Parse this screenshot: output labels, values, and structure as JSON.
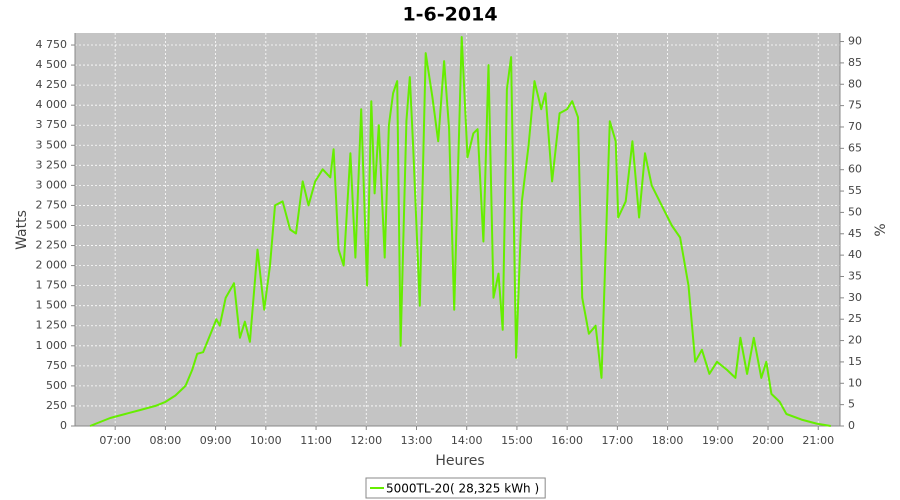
{
  "chart_data": {
    "type": "line",
    "title": "1-6-2014",
    "xlabel": "Heures",
    "ylabel": "Watts",
    "y2label": "%",
    "x": [
      "06:30",
      "06:42",
      "06:54",
      "07:12",
      "07:30",
      "07:48",
      "08:00",
      "08:12",
      "08:24",
      "08:32",
      "08:38",
      "08:45",
      "08:54",
      "09:01",
      "09:05",
      "09:12",
      "09:22",
      "09:29",
      "09:35",
      "09:41",
      "09:50",
      "09:58",
      "10:05",
      "10:11",
      "10:20",
      "10:29",
      "10:36",
      "10:44",
      "10:51",
      "10:59",
      "11:08",
      "11:17",
      "11:21",
      "11:27",
      "11:33",
      "11:41",
      "11:47",
      "11:54",
      "12:01",
      "12:06",
      "12:10",
      "12:15",
      "12:22",
      "12:27",
      "12:32",
      "12:37",
      "12:41",
      "12:48",
      "12:52",
      "12:56",
      "13:04",
      "13:11",
      "13:19",
      "13:26",
      "13:33",
      "13:39",
      "13:45",
      "13:54",
      "14:01",
      "14:08",
      "14:13",
      "14:20",
      "14:26",
      "14:32",
      "14:38",
      "14:43",
      "14:48",
      "14:53",
      "14:59",
      "15:06",
      "15:14",
      "15:21",
      "15:29",
      "15:34",
      "15:42",
      "15:51",
      "16:00",
      "16:06",
      "16:13",
      "16:18",
      "16:26",
      "16:34",
      "16:41",
      "16:51",
      "16:58",
      "17:01",
      "17:10",
      "17:18",
      "17:26",
      "17:33",
      "17:41",
      "17:53",
      "18:05",
      "18:15",
      "18:25",
      "18:33",
      "18:41",
      "18:50",
      "18:59",
      "19:11",
      "19:21",
      "19:27",
      "19:35",
      "19:43",
      "19:52",
      "19:58",
      "20:04",
      "20:14",
      "20:22",
      "20:40",
      "20:58",
      "21:15"
    ],
    "series": [
      {
        "name": "5000TL-20( 28,325 kWh )",
        "color": "#66ee00",
        "values": [
          0,
          50,
          100,
          150,
          200,
          250,
          300,
          380,
          500,
          700,
          900,
          920,
          1150,
          1330,
          1250,
          1600,
          1780,
          1100,
          1300,
          1050,
          2200,
          1450,
          2000,
          2750,
          2800,
          2450,
          2400,
          3050,
          2750,
          3050,
          3200,
          3100,
          3450,
          2200,
          2000,
          3400,
          2100,
          3950,
          1750,
          4050,
          2900,
          3750,
          2100,
          3750,
          4150,
          4300,
          1000,
          3800,
          4350,
          3500,
          1500,
          4650,
          4100,
          3550,
          4550,
          3700,
          1450,
          4850,
          3350,
          3650,
          3700,
          2300,
          4500,
          1600,
          1900,
          1200,
          4200,
          4600,
          850,
          2800,
          3500,
          4300,
          3950,
          4150,
          3050,
          3900,
          3950,
          4050,
          3850,
          1600,
          1150,
          1250,
          600,
          3800,
          3550,
          2600,
          2800,
          3550,
          2600,
          3400,
          3000,
          2750,
          2500,
          2350,
          1750,
          800,
          950,
          650,
          800,
          700,
          600,
          1100,
          650,
          1100,
          600,
          800,
          400,
          300,
          150,
          80,
          30,
          0
        ]
      }
    ],
    "xlim": [
      "06:12",
      "21:26"
    ],
    "xticks": [
      "07:00",
      "08:00",
      "09:00",
      "10:00",
      "11:00",
      "12:00",
      "13:00",
      "14:00",
      "15:00",
      "16:00",
      "17:00",
      "18:00",
      "19:00",
      "20:00",
      "21:00"
    ],
    "ylim": [
      0,
      4900
    ],
    "yticks": [
      0,
      250,
      500,
      750,
      {
        "value": 1000,
        "label": "1 000"
      },
      {
        "value": 1250,
        "label": "1 250"
      },
      {
        "value": 1500,
        "label": "1 500"
      },
      {
        "value": 1750,
        "label": "1 750"
      },
      {
        "value": 2000,
        "label": "2 000"
      },
      {
        "value": 2250,
        "label": "2 250"
      },
      {
        "value": 2500,
        "label": "2 500"
      },
      {
        "value": 2750,
        "label": "2 750"
      },
      {
        "value": 3000,
        "label": "3 000"
      },
      {
        "value": 3250,
        "label": "3 250"
      },
      {
        "value": 3500,
        "label": "3 500"
      },
      {
        "value": 3750,
        "label": "3 750"
      },
      {
        "value": 4000,
        "label": "4 000"
      },
      {
        "value": 4250,
        "label": "4 250"
      },
      {
        "value": 4500,
        "label": "4 500"
      },
      {
        "value": 4750,
        "label": "4 750"
      }
    ],
    "y2lim": [
      0,
      92
    ],
    "y2ticks": [
      0,
      5,
      10,
      15,
      20,
      25,
      30,
      35,
      40,
      45,
      50,
      55,
      60,
      65,
      70,
      75,
      80,
      85,
      90
    ],
    "grid": true
  }
}
